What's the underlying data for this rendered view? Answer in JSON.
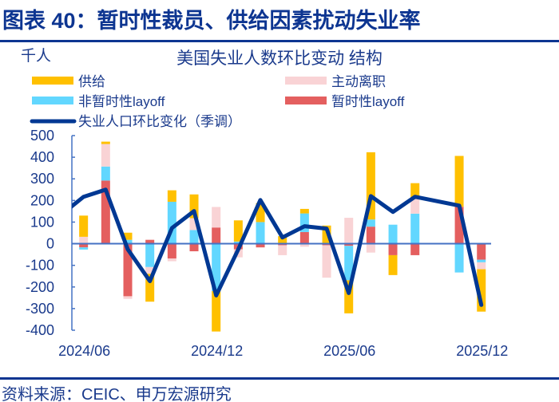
{
  "figure_title": "图表 40：暂时性裁员、供给因素扰动失业率",
  "source": "资料来源：CEIC、申万宏源研究",
  "colors": {
    "supply": "#FFC000",
    "voluntary": "#F9D3D5",
    "nontemp": "#62D7FF",
    "temp": "#E45F5F",
    "line": "#003893",
    "axis": "#4472C4"
  },
  "chart_data": {
    "type": "bar+line",
    "title": "美国失业人数环比变动 结构",
    "ylabel": "千人",
    "ylim": [
      -400,
      500
    ],
    "yticks": [
      -400,
      -300,
      -200,
      -100,
      0,
      100,
      200,
      300,
      400,
      500
    ],
    "xtick_labels": [
      "2024/06",
      "2024/12",
      "2025/06",
      "2025/12"
    ],
    "legend_placement": "top",
    "categories": [
      "2024/05",
      "2024/06",
      "2024/07",
      "2024/08",
      "2024/09",
      "2024/10",
      "2024/11",
      "2024/12",
      "2025/01",
      "2025/02",
      "2025/03",
      "2025/04",
      "2025/05",
      "2025/06",
      "2025/07",
      "2025/08",
      "2025/09",
      "2025/10",
      "2025/11",
      "2025/12"
    ],
    "series": [
      {
        "name": "暂时性layoff",
        "key": "temp",
        "kind": "bar",
        "values": [
          null,
          -17,
          292,
          -243,
          18,
          -68,
          -35,
          75,
          -26,
          -17,
          -7,
          54,
          -7,
          -10,
          79,
          -53,
          -53,
          null,
          171,
          -74
        ]
      },
      {
        "name": "非暂时性layoff",
        "key": "nontemp",
        "kind": "bar",
        "values": [
          null,
          -10,
          65,
          18,
          -108,
          194,
          63,
          -219,
          10,
          100,
          0,
          86,
          0,
          -159,
          33,
          88,
          139,
          null,
          -133,
          -12
        ]
      },
      {
        "name": "主动离职",
        "key": "voluntary",
        "kind": "bar",
        "values": [
          null,
          32,
          104,
          -12,
          -31,
          -13,
          55,
          95,
          -37,
          0,
          -46,
          -14,
          -150,
          120,
          -41,
          0,
          71,
          null,
          0,
          -32
        ]
      },
      {
        "name": "供给",
        "key": "supply",
        "kind": "bar",
        "values": [
          null,
          98,
          11,
          33,
          -129,
          53,
          110,
          -187,
          98,
          88,
          35,
          21,
          84,
          -153,
          311,
          -92,
          70,
          null,
          235,
          -196
        ]
      },
      {
        "name": "失业人口环比变化（季调）",
        "key": "line",
        "kind": "line",
        "values": [
          135,
          217,
          250,
          -26,
          -173,
          73,
          151,
          -239,
          -26,
          202,
          29,
          81,
          70,
          -228,
          220,
          147,
          217,
          null,
          176,
          -283
        ]
      }
    ]
  }
}
